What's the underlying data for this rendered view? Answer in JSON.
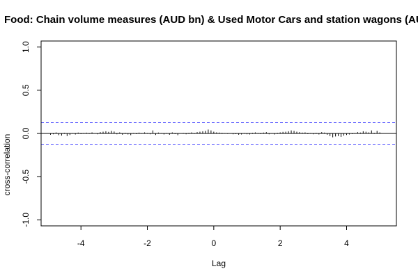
{
  "chart_data": {
    "type": "bar",
    "title": "Food: Chain volume measures (AUD bn) & Used Motor Cars and station wagons (AUD",
    "xlabel": "Lag",
    "ylabel": "cross-correlation",
    "xlim": [
      -5.2,
      5.5
    ],
    "ylim": [
      -1.07,
      1.07
    ],
    "x_ticks": [
      -4,
      -2,
      0,
      2,
      4
    ],
    "x_tick_labels": [
      "-4",
      "-2",
      "0",
      "2",
      "4"
    ],
    "y_ticks": [
      -1.0,
      -0.5,
      0.0,
      0.5,
      1.0
    ],
    "y_tick_labels": [
      "-1.0",
      "-0.5",
      "0.0",
      "0.5",
      "1.0"
    ],
    "confidence_bound": 0.125,
    "zero_line": 0,
    "grid": false,
    "colors": {
      "bars": "#000000",
      "zero_line": "#000000",
      "confidence": "#4a4aff",
      "frame": "#000000"
    },
    "x": [
      -4.917,
      -4.833,
      -4.75,
      -4.667,
      -4.583,
      -4.5,
      -4.417,
      -4.333,
      -4.25,
      -4.167,
      -4.083,
      -4.0,
      -3.917,
      -3.833,
      -3.75,
      -3.667,
      -3.583,
      -3.5,
      -3.417,
      -3.333,
      -3.25,
      -3.167,
      -3.083,
      -3.0,
      -2.917,
      -2.833,
      -2.75,
      -2.667,
      -2.583,
      -2.5,
      -2.417,
      -2.333,
      -2.25,
      -2.167,
      -2.083,
      -2.0,
      -1.917,
      -1.833,
      -1.75,
      -1.667,
      -1.583,
      -1.5,
      -1.417,
      -1.333,
      -1.25,
      -1.167,
      -1.083,
      -1.0,
      -0.917,
      -0.833,
      -0.75,
      -0.667,
      -0.583,
      -0.5,
      -0.417,
      -0.333,
      -0.25,
      -0.167,
      -0.083,
      0.0,
      0.083,
      0.167,
      0.25,
      0.333,
      0.417,
      0.5,
      0.583,
      0.667,
      0.75,
      0.833,
      0.917,
      1.0,
      1.083,
      1.167,
      1.25,
      1.333,
      1.417,
      1.5,
      1.583,
      1.667,
      1.75,
      1.833,
      1.917,
      2.0,
      2.083,
      2.167,
      2.25,
      2.333,
      2.417,
      2.5,
      2.583,
      2.667,
      2.75,
      2.833,
      2.917,
      3.0,
      3.083,
      3.167,
      3.25,
      3.333,
      3.417,
      3.5,
      3.583,
      3.667,
      3.75,
      3.833,
      3.917,
      4.0,
      4.083,
      4.167,
      4.25,
      4.333,
      4.417,
      4.5,
      4.583,
      4.667,
      4.75,
      4.833,
      4.917,
      5.0
    ],
    "values": [
      -0.015,
      -0.01,
      0.012,
      -0.02,
      -0.025,
      0.008,
      -0.03,
      -0.018,
      0.005,
      -0.012,
      0.01,
      -0.008,
      0.006,
      0.009,
      -0.006,
      0.012,
      0.004,
      -0.01,
      0.015,
      0.02,
      0.025,
      0.018,
      0.03,
      0.022,
      -0.01,
      0.012,
      -0.015,
      0.008,
      -0.012,
      -0.02,
      0.006,
      -0.008,
      0.01,
      -0.005,
      0.012,
      0.006,
      -0.01,
      0.035,
      -0.018,
      0.01,
      0.005,
      -0.012,
      0.006,
      -0.015,
      0.012,
      -0.008,
      -0.02,
      0.004,
      0.006,
      -0.01,
      0.008,
      0.012,
      -0.006,
      0.015,
      0.02,
      0.025,
      0.03,
      0.045,
      0.035,
      0.02,
      0.012,
      0.01,
      0.008,
      0.005,
      -0.006,
      0.004,
      -0.01,
      -0.008,
      -0.015,
      -0.012,
      0.006,
      -0.01,
      -0.012,
      0.008,
      0.012,
      0.006,
      -0.008,
      0.01,
      0.015,
      -0.01,
      0.005,
      -0.012,
      0.008,
      0.012,
      0.018,
      0.02,
      0.025,
      0.035,
      0.03,
      0.02,
      0.015,
      0.01,
      0.012,
      -0.008,
      0.006,
      -0.01,
      0.008,
      -0.012,
      0.015,
      0.01,
      -0.015,
      -0.03,
      -0.045,
      -0.035,
      -0.03,
      -0.04,
      -0.025,
      -0.018,
      -0.012,
      -0.008,
      0.006,
      0.015,
      0.01,
      0.025,
      0.02,
      0.012,
      0.035,
      0.008,
      0.03,
      0.012
    ]
  }
}
